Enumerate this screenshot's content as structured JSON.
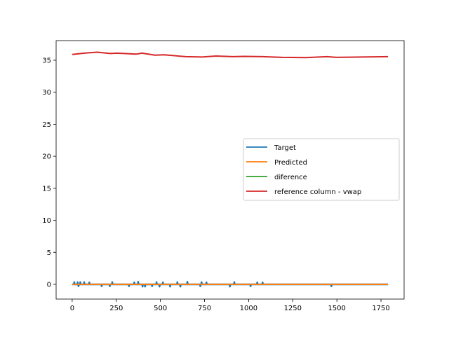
{
  "chart_data": {
    "type": "line",
    "title": "",
    "xlabel": "",
    "ylabel": "",
    "xlim": [
      -91,
      1881
    ],
    "ylim": [
      -2.3,
      38.06
    ],
    "xticks": [
      0,
      250,
      500,
      750,
      1000,
      1250,
      1500,
      1750
    ],
    "yticks": [
      0,
      5,
      10,
      15,
      20,
      25,
      30,
      35
    ],
    "grid": false,
    "legend_position": "center-right",
    "x_range": [
      0,
      1790
    ],
    "series": [
      {
        "name": "Target",
        "color": "#1f77b4",
        "baseline": 0,
        "spikes": [
          [
            12,
            0.35
          ],
          [
            31,
            0.35
          ],
          [
            36,
            -0.3
          ],
          [
            46,
            0.35
          ],
          [
            68,
            0.35
          ],
          [
            97,
            0.3
          ],
          [
            167,
            -0.3
          ],
          [
            213,
            -0.3
          ],
          [
            227,
            0.35
          ],
          [
            322,
            -0.3
          ],
          [
            352,
            0.3
          ],
          [
            374,
            0.4
          ],
          [
            399,
            -0.35
          ],
          [
            413,
            -0.35
          ],
          [
            453,
            -0.3
          ],
          [
            478,
            0.35
          ],
          [
            495,
            -0.35
          ],
          [
            514,
            0.3
          ],
          [
            555,
            -0.35
          ],
          [
            596,
            0.35
          ],
          [
            613,
            -0.35
          ],
          [
            653,
            0.4
          ],
          [
            726,
            -0.3
          ],
          [
            733,
            0.35
          ],
          [
            761,
            0.3
          ],
          [
            894,
            -0.35
          ],
          [
            919,
            0.35
          ],
          [
            1011,
            -0.3
          ],
          [
            1049,
            0.3
          ],
          [
            1079,
            0.3
          ],
          [
            1469,
            -0.3
          ]
        ]
      },
      {
        "name": "Predicted",
        "color": "#ff7f0e",
        "points": [
          [
            0,
            0
          ],
          [
            1790,
            0
          ]
        ]
      },
      {
        "name": "diference",
        "color": "#2ca02c",
        "note_same_as": "Target"
      },
      {
        "name": "reference column - vwap",
        "color": "#d62728",
        "points": [
          [
            0,
            35.9
          ],
          [
            68,
            36.1
          ],
          [
            142,
            36.25
          ],
          [
            215,
            36.05
          ],
          [
            255,
            36.1
          ],
          [
            362,
            35.95
          ],
          [
            396,
            36.1
          ],
          [
            469,
            35.8
          ],
          [
            521,
            35.85
          ],
          [
            643,
            35.55
          ],
          [
            736,
            35.5
          ],
          [
            815,
            35.65
          ],
          [
            910,
            35.55
          ],
          [
            975,
            35.6
          ],
          [
            1083,
            35.55
          ],
          [
            1190,
            35.45
          ],
          [
            1324,
            35.4
          ],
          [
            1444,
            35.55
          ],
          [
            1497,
            35.45
          ],
          [
            1643,
            35.5
          ],
          [
            1790,
            35.55
          ]
        ]
      }
    ]
  }
}
